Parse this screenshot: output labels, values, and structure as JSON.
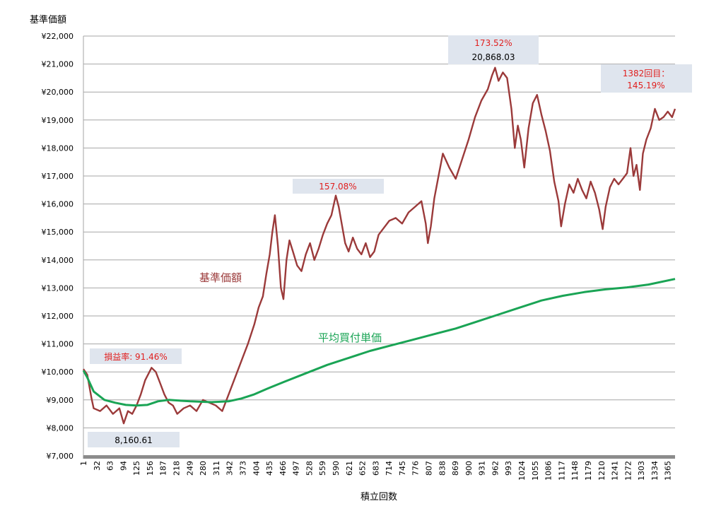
{
  "chart_data": {
    "type": "line",
    "title": "",
    "ylabel": "基準価額",
    "xlabel": "積立回数",
    "ylim": [
      7000,
      22000
    ],
    "yticks": [
      7000,
      8000,
      9000,
      10000,
      11000,
      12000,
      13000,
      14000,
      15000,
      16000,
      17000,
      18000,
      19000,
      20000,
      21000,
      22000
    ],
    "ytick_labels": [
      "¥7,000",
      "¥8,000",
      "¥9,000",
      "¥10,000",
      "¥11,000",
      "¥12,000",
      "¥13,000",
      "¥14,000",
      "¥15,000",
      "¥16,000",
      "¥17,000",
      "¥18,000",
      "¥19,000",
      "¥20,000",
      "¥21,000",
      "¥22,000"
    ],
    "xlim": [
      1,
      1382
    ],
    "xtick_labels": [
      "1",
      "32",
      "63",
      "94",
      "125",
      "156",
      "187",
      "218",
      "249",
      "280",
      "311",
      "342",
      "373",
      "404",
      "435",
      "466",
      "497",
      "528",
      "559",
      "590",
      "621",
      "652",
      "683",
      "714",
      "745",
      "776",
      "807",
      "838",
      "869",
      "900",
      "931",
      "962",
      "993",
      "1024",
      "1055",
      "1086",
      "1117",
      "1148",
      "1179",
      "1210",
      "1241",
      "1272",
      "1303",
      "1334",
      "1365"
    ],
    "grid": true,
    "series": [
      {
        "name": "基準価額",
        "color": "#9b3a3a",
        "x": [
          1,
          10,
          20,
          25,
          40,
          55,
          70,
          85,
          95,
          105,
          115,
          125,
          135,
          145,
          160,
          170,
          180,
          190,
          200,
          210,
          220,
          235,
          250,
          265,
          280,
          295,
          310,
          325,
          340,
          355,
          370,
          385,
          400,
          410,
          420,
          428,
          436,
          442,
          448,
          455,
          462,
          468,
          475,
          482,
          490,
          500,
          510,
          520,
          530,
          540,
          550,
          560,
          570,
          580,
          590,
          597,
          605,
          612,
          620,
          630,
          640,
          650,
          660,
          670,
          680,
          690,
          700,
          715,
          730,
          745,
          760,
          775,
          790,
          800,
          805,
          812,
          820,
          830,
          840,
          855,
          870,
          885,
          900,
          915,
          930,
          945,
          955,
          962,
          970,
          980,
          990,
          1000,
          1008,
          1015,
          1022,
          1030,
          1040,
          1050,
          1060,
          1070,
          1080,
          1090,
          1100,
          1110,
          1116,
          1125,
          1135,
          1145,
          1155,
          1165,
          1175,
          1185,
          1195,
          1205,
          1213,
          1220,
          1230,
          1240,
          1250,
          1260,
          1270,
          1278,
          1285,
          1292,
          1300,
          1307,
          1315,
          1325,
          1335,
          1345,
          1355,
          1365,
          1375,
          1382
        ],
        "y": [
          10100,
          9900,
          9050,
          8700,
          8600,
          8800,
          8500,
          8700,
          8160,
          8600,
          8500,
          8800,
          9200,
          9700,
          10150,
          10000,
          9600,
          9200,
          8900,
          8800,
          8500,
          8700,
          8800,
          8600,
          9000,
          8900,
          8800,
          8600,
          9200,
          9800,
          10400,
          11000,
          11700,
          12300,
          12700,
          13500,
          14200,
          15000,
          15600,
          14500,
          13000,
          12600,
          14000,
          14700,
          14300,
          13800,
          13600,
          14200,
          14600,
          14000,
          14400,
          14900,
          15300,
          15600,
          16300,
          15900,
          15200,
          14600,
          14300,
          14800,
          14400,
          14200,
          14600,
          14100,
          14300,
          14900,
          15100,
          15400,
          15500,
          15300,
          15700,
          15900,
          16100,
          15300,
          14600,
          15200,
          16200,
          17000,
          17800,
          17300,
          16900,
          17600,
          18300,
          19100,
          19700,
          20100,
          20600,
          20868,
          20400,
          20700,
          20500,
          19400,
          18000,
          18800,
          18300,
          17300,
          18700,
          19600,
          19900,
          19200,
          18600,
          17900,
          16800,
          16100,
          15200,
          16000,
          16700,
          16400,
          16900,
          16500,
          16200,
          16800,
          16400,
          15800,
          15100,
          15900,
          16600,
          16900,
          16700,
          16900,
          17100,
          18000,
          17000,
          17400,
          16500,
          17800,
          18300,
          18700,
          19400,
          19000,
          19100,
          19300,
          19100,
          19400
        ]
      },
      {
        "name": "平均買付単価",
        "color": "#1aa455",
        "x": [
          1,
          10,
          25,
          50,
          75,
          100,
          125,
          150,
          175,
          200,
          250,
          300,
          340,
          370,
          400,
          430,
          470,
          520,
          570,
          620,
          670,
          720,
          770,
          820,
          870,
          920,
          970,
          1020,
          1070,
          1120,
          1170,
          1220,
          1270,
          1320,
          1382
        ],
        "y": [
          10050,
          9800,
          9300,
          9000,
          8900,
          8820,
          8800,
          8820,
          8950,
          9000,
          8950,
          8920,
          8950,
          9050,
          9200,
          9400,
          9650,
          9950,
          10250,
          10500,
          10750,
          10950,
          11150,
          11350,
          11550,
          11800,
          12050,
          12300,
          12550,
          12720,
          12850,
          12950,
          13020,
          13120,
          13320
        ]
      }
    ],
    "annotations": [
      {
        "text": "損益率: 91.46%",
        "color": "#e0201f"
      },
      {
        "text": "8,160.61",
        "color": "#000000"
      },
      {
        "text": "157.08%",
        "color": "#e0201f"
      },
      {
        "text": "173.52%",
        "color": "#e0201f"
      },
      {
        "text": "20,868.03",
        "color": "#000000"
      },
      {
        "text": "1382回目：",
        "color": "#e0201f"
      },
      {
        "text": "145.19%",
        "color": "#e0201f"
      }
    ]
  }
}
